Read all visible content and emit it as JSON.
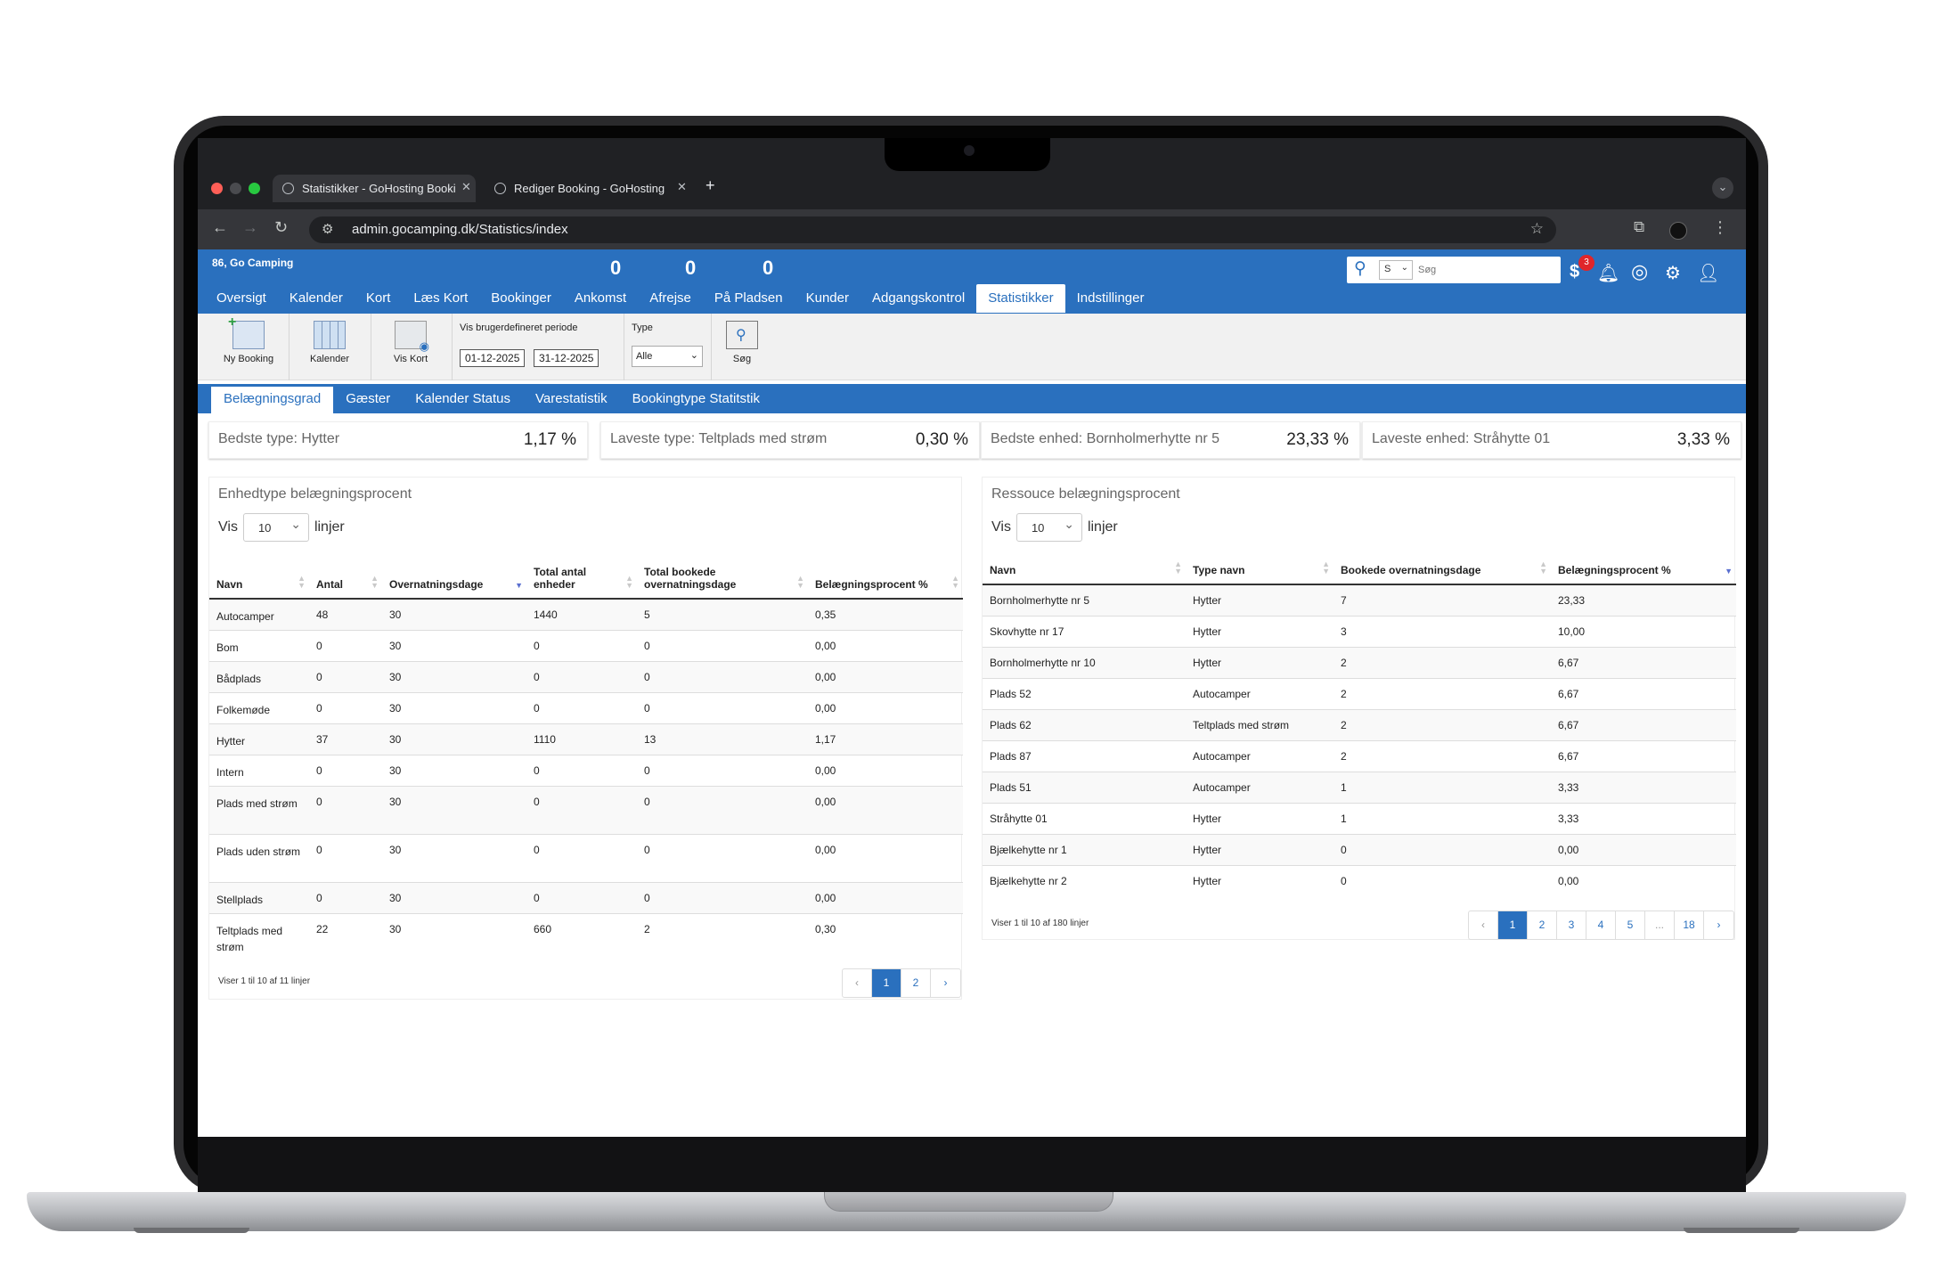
{
  "browser": {
    "tabs": [
      {
        "title": "Statistikker - GoHosting Booki"
      },
      {
        "title": "Rediger Booking - GoHosting"
      }
    ],
    "url": "admin.gocamping.dk/Statistics/index"
  },
  "header": {
    "org": "86, Go Camping",
    "counters": [
      "0",
      "0",
      "0"
    ],
    "search_select": "S",
    "search_placeholder": "Søg",
    "notification_count": "3"
  },
  "nav": [
    "Oversigt",
    "Kalender",
    "Kort",
    "Læs Kort",
    "Bookinger",
    "Ankomst",
    "Afrejse",
    "På Pladsen",
    "Kunder",
    "Adgangskontrol",
    "Statistikker",
    "Indstillinger"
  ],
  "ribbon": {
    "ny_booking": "Ny Booking",
    "kalender": "Kalender",
    "vis_kort": "Vis Kort",
    "period_label": "Vis brugerdefineret periode",
    "date_from": "01-12-2025",
    "date_to": "31-12-2025",
    "type_label": "Type",
    "type_value": "Alle",
    "search": "Søg"
  },
  "subtabs": [
    "Belægningsgrad",
    "Gæster",
    "Kalender Status",
    "Varestatistik",
    "Bookingtype Statitstik"
  ],
  "summary": [
    {
      "label": "Bedste type: Hytter",
      "value": "1,17 %"
    },
    {
      "label": "Laveste type: Teltplads med strøm",
      "value": "0,30 %"
    },
    {
      "label": "Bedste enhed: Bornholmerhytte nr 5",
      "value": "23,33 %"
    },
    {
      "label": "Laveste enhed: Stråhytte 01",
      "value": "3,33 %"
    }
  ],
  "left_panel": {
    "title": "Enhedtype belægningsprocent",
    "vis": "Vis",
    "lines": "linjer",
    "page_size": "10",
    "columns": [
      "Navn",
      "Antal",
      "Overnatningsdage",
      "Total antal enheder",
      "Total bookede overnatningsdage",
      "Belægningsprocent %"
    ],
    "rows": [
      [
        "Autocamper",
        "48",
        "30",
        "1440",
        "5",
        "0,35"
      ],
      [
        "Bom",
        "0",
        "30",
        "0",
        "0",
        "0,00"
      ],
      [
        "Bådplads",
        "0",
        "30",
        "0",
        "0",
        "0,00"
      ],
      [
        "Folkemøde",
        "0",
        "30",
        "0",
        "0",
        "0,00"
      ],
      [
        "Hytter",
        "37",
        "30",
        "1110",
        "13",
        "1,17"
      ],
      [
        "Intern",
        "0",
        "30",
        "0",
        "0",
        "0,00"
      ],
      [
        "Plads med strøm",
        "0",
        "30",
        "0",
        "0",
        "0,00"
      ],
      [
        "Plads uden strøm",
        "0",
        "30",
        "0",
        "0",
        "0,00"
      ],
      [
        "Stellplads",
        "0",
        "30",
        "0",
        "0",
        "0,00"
      ],
      [
        "Teltplads med strøm",
        "22",
        "30",
        "660",
        "2",
        "0,30"
      ]
    ],
    "info": "Viser 1 til 10 af 11 linjer",
    "pages": [
      "‹",
      "1",
      "2",
      "›"
    ]
  },
  "right_panel": {
    "title": "Ressouce belægningsprocent",
    "vis": "Vis",
    "lines": "linjer",
    "page_size": "10",
    "columns": [
      "Navn",
      "Type navn",
      "Bookede overnatningsdage",
      "Belægningsprocent %"
    ],
    "rows": [
      [
        "Bornholmerhytte nr 5",
        "Hytter",
        "7",
        "23,33"
      ],
      [
        "Skovhytte nr 17",
        "Hytter",
        "3",
        "10,00"
      ],
      [
        "Bornholmerhytte nr 10",
        "Hytter",
        "2",
        "6,67"
      ],
      [
        "Plads 52",
        "Autocamper",
        "2",
        "6,67"
      ],
      [
        "Plads 62",
        "Teltplads med strøm",
        "2",
        "6,67"
      ],
      [
        "Plads 87",
        "Autocamper",
        "2",
        "6,67"
      ],
      [
        "Plads 51",
        "Autocamper",
        "1",
        "3,33"
      ],
      [
        "Stråhytte 01",
        "Hytter",
        "1",
        "3,33"
      ],
      [
        "Bjælkehytte nr 1",
        "Hytter",
        "0",
        "0,00"
      ],
      [
        "Bjælkehytte nr 2",
        "Hytter",
        "0",
        "0,00"
      ]
    ],
    "info": "Viser 1 til 10 af 180 linjer",
    "pages": [
      "‹",
      "1",
      "2",
      "3",
      "4",
      "5",
      "...",
      "18",
      "›"
    ]
  },
  "colors": {
    "brand": "#2a70be",
    "badge": "#e0252a"
  }
}
